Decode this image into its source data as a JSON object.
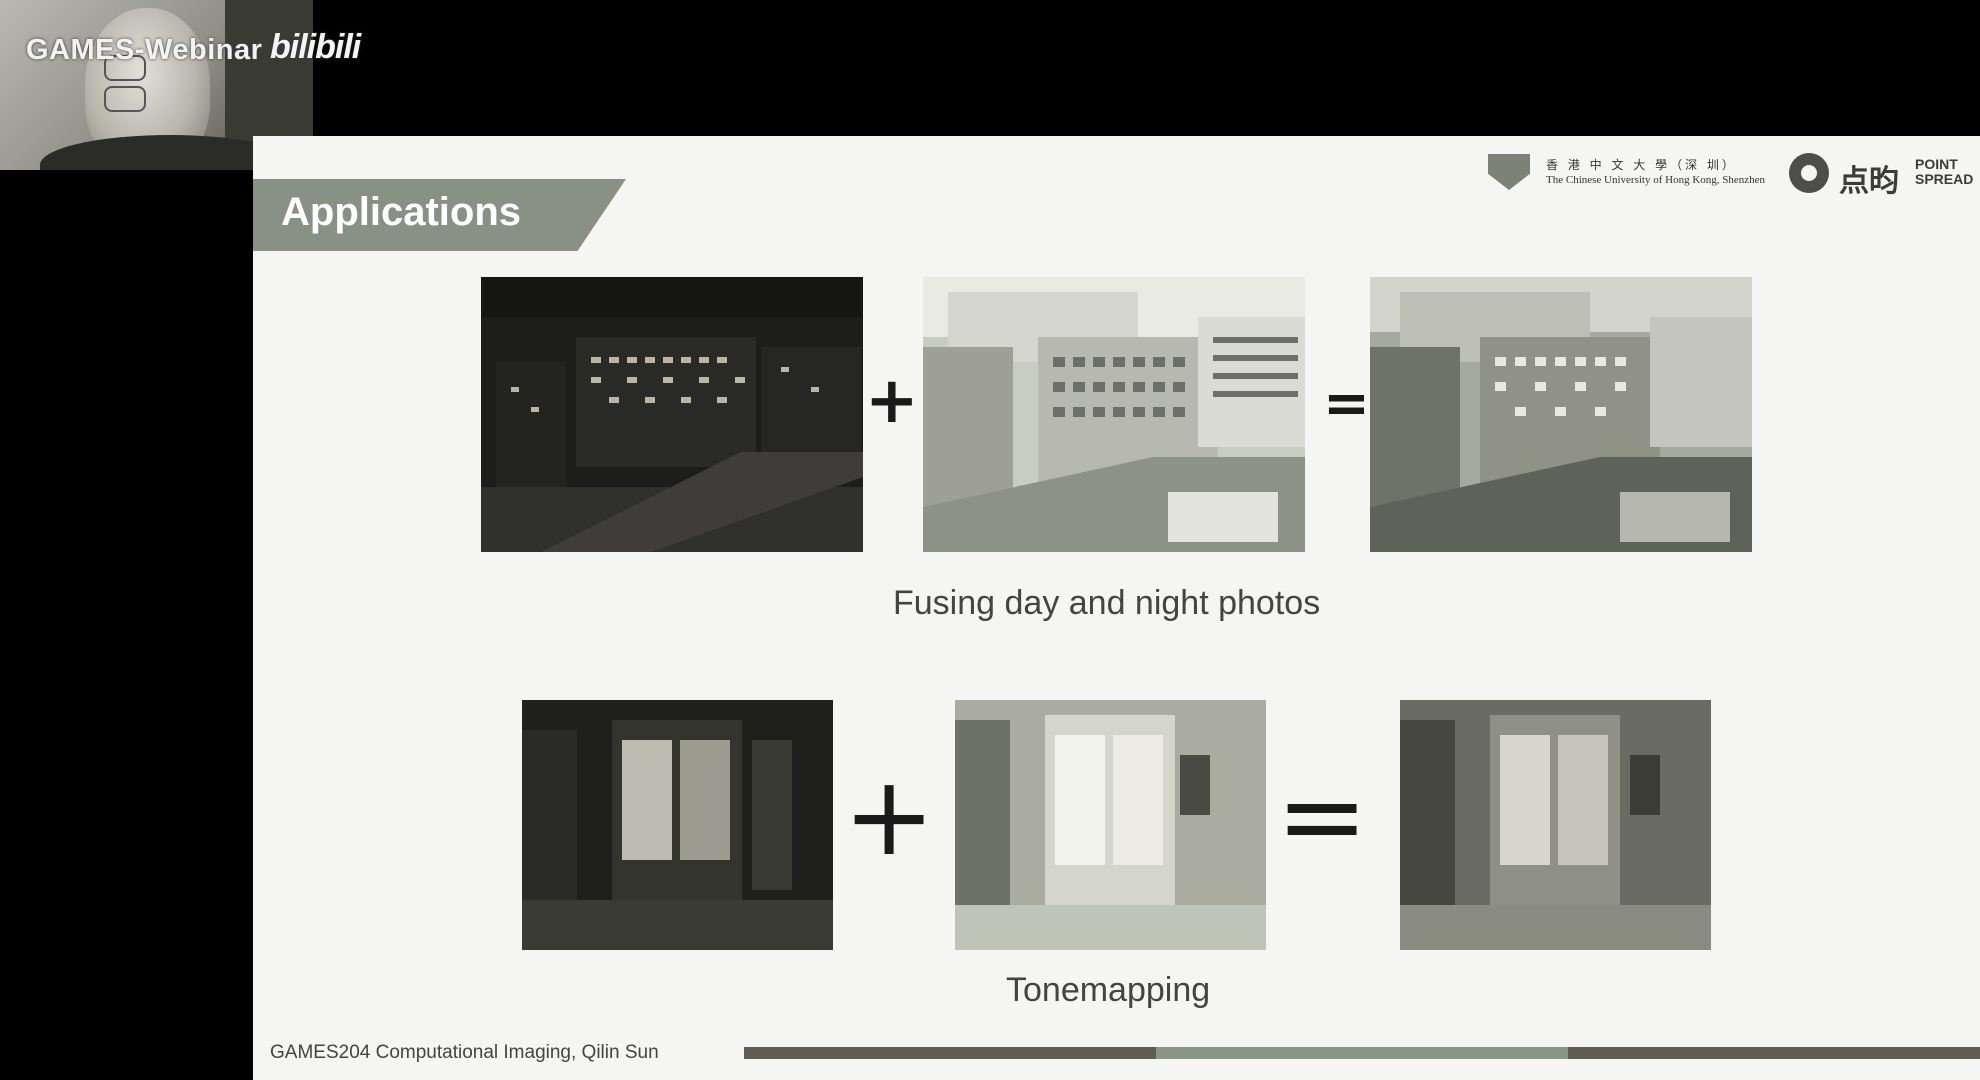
{
  "overlay": {
    "brand": "GAMES-Webinar",
    "platform": "bilibili"
  },
  "slide": {
    "title": "Applications",
    "logos": {
      "university_cn": "香 港 中 文 大 學（深 圳）",
      "university_en": "The Chinese University of Hong Kong, Shenzhen",
      "company_cn": "点昀",
      "company_en_line1": "POINT",
      "company_en_line2": "SPREAD"
    },
    "row1": {
      "operator_plus": "+",
      "operator_equals": "=",
      "caption": "Fusing day and night photos"
    },
    "row2": {
      "operator_plus": "+",
      "operator_equals": "=",
      "caption": "Tonemapping"
    },
    "footer": "GAMES204 Computational Imaging, Qilin Sun"
  },
  "colors": {
    "accent": "#889184",
    "bar_dark": "#5e5c55",
    "bar_light": "#8a9487"
  }
}
